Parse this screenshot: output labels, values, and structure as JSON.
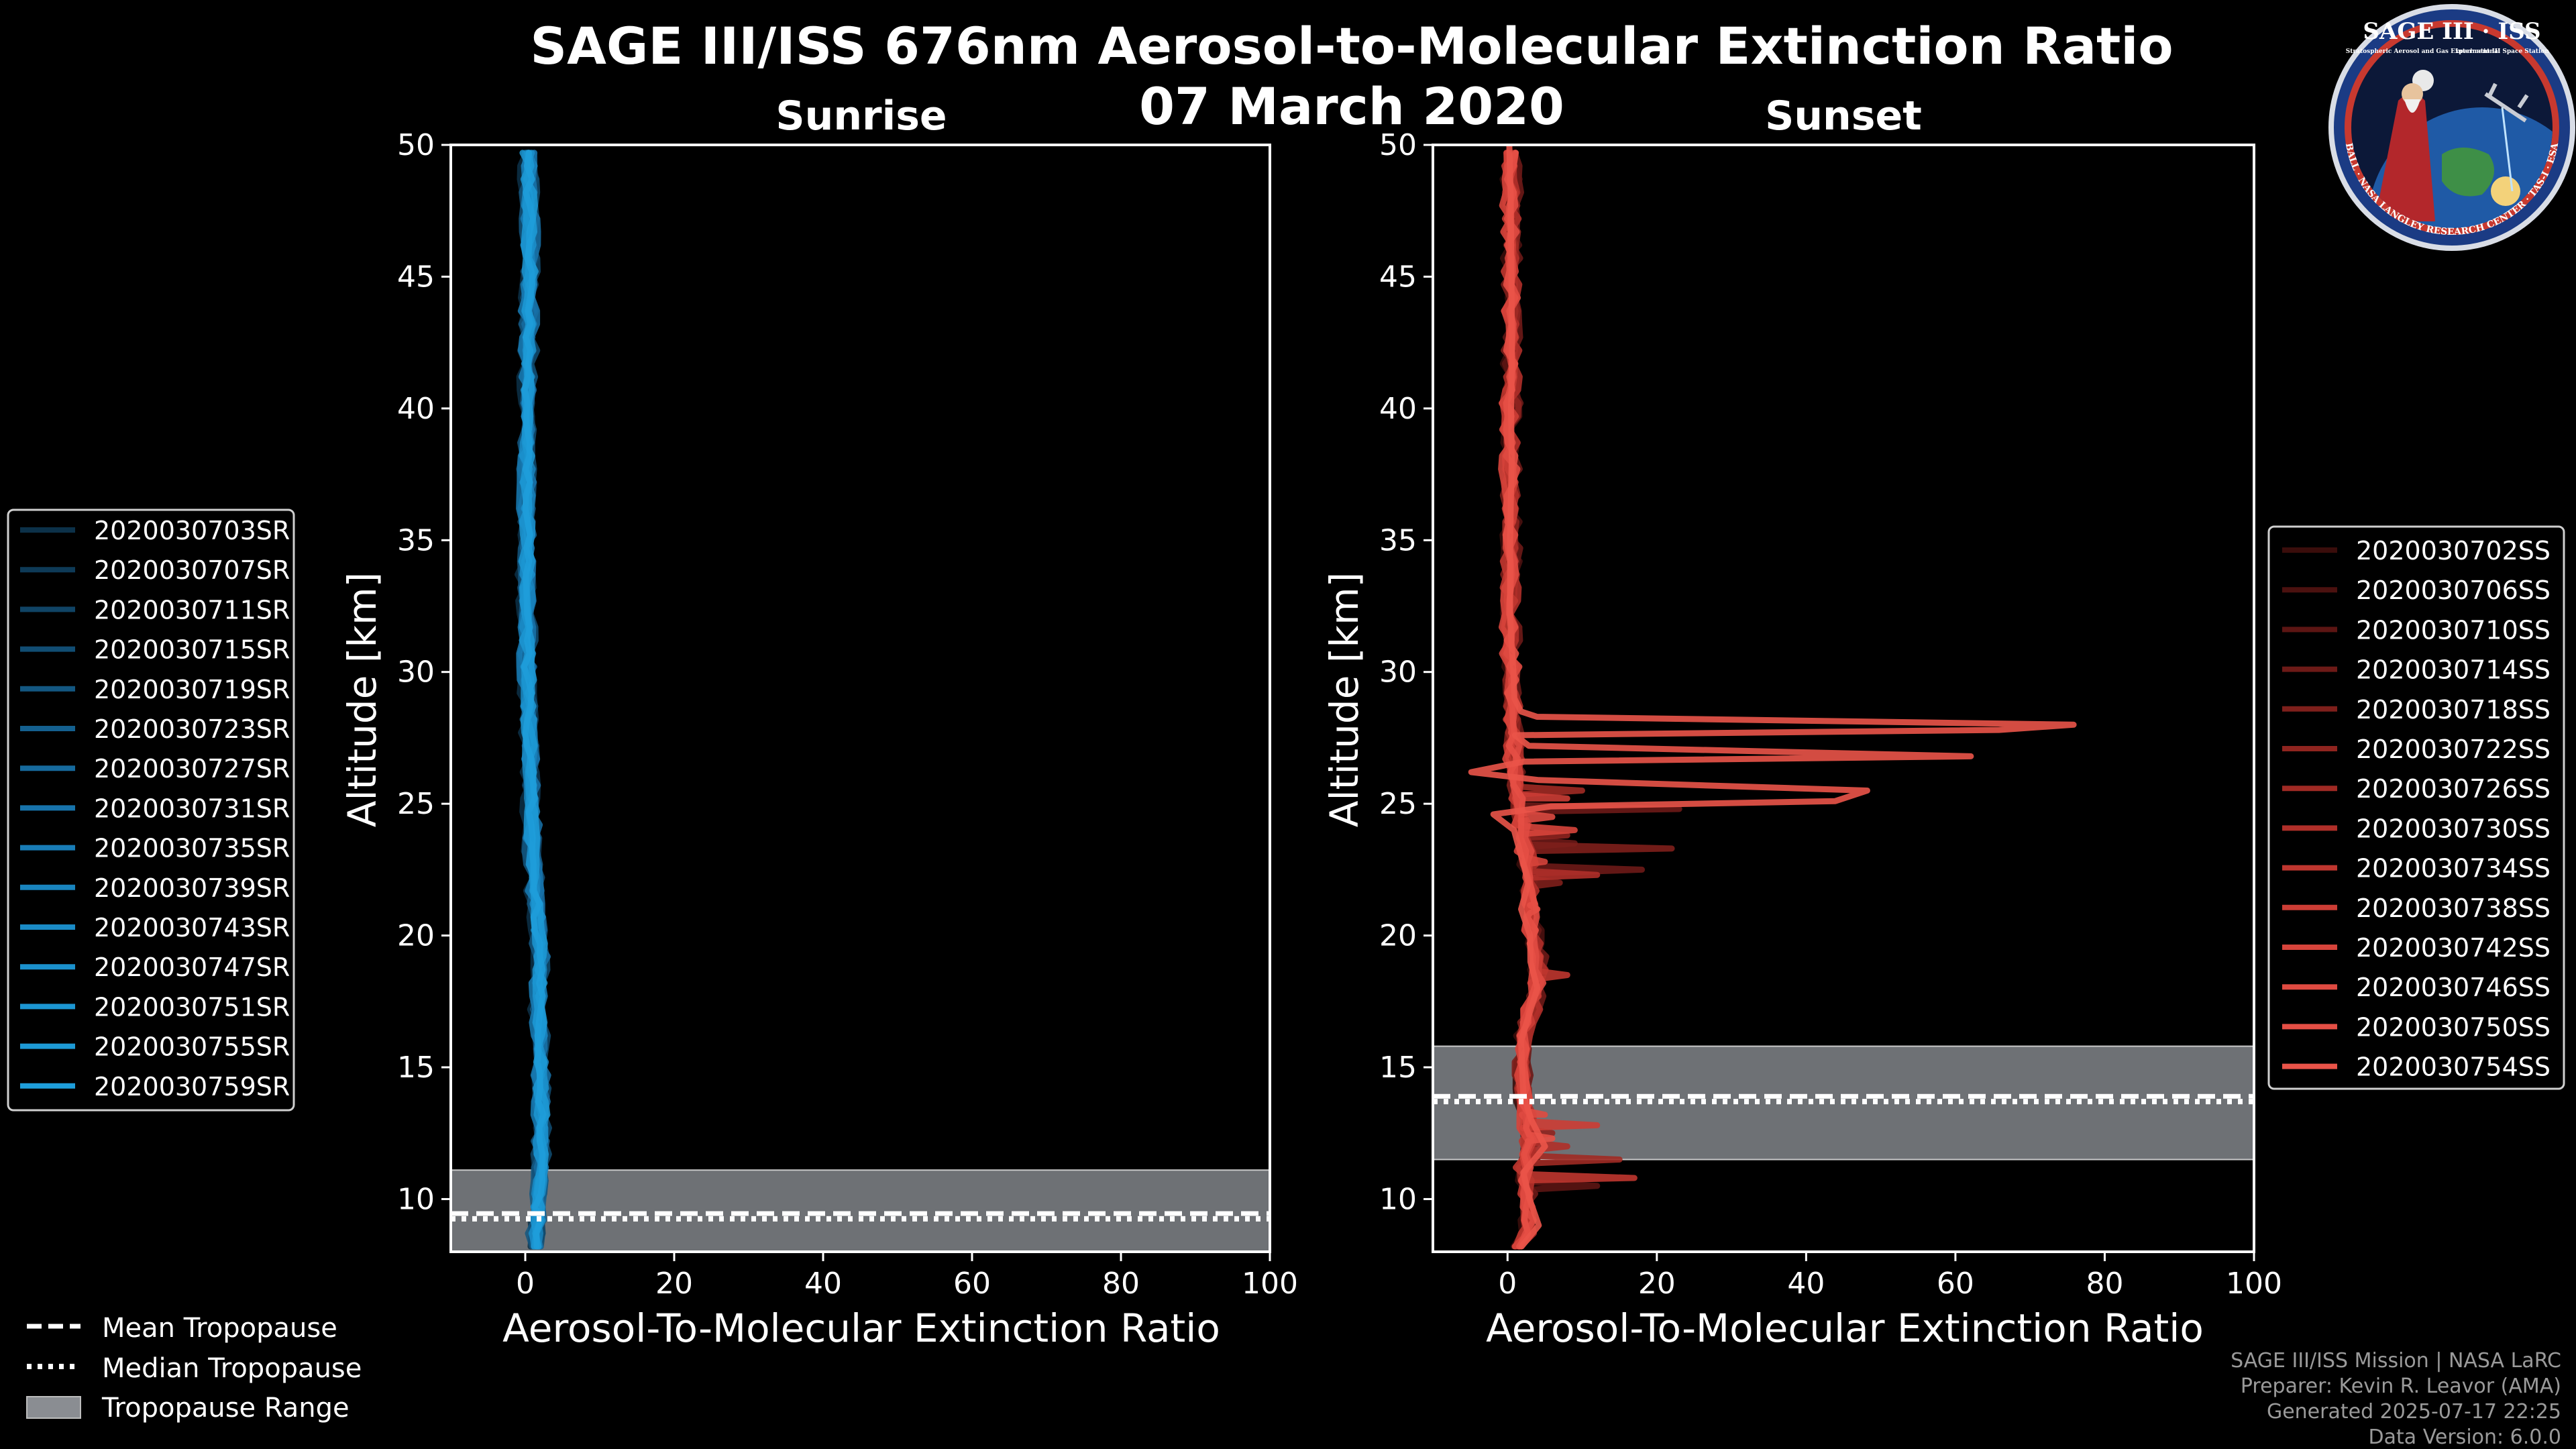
{
  "header": {
    "title": "SAGE III/ISS 676nm Aerosol-to-Molecular Extinction Ratio",
    "date": "07 March 2020"
  },
  "logo": {
    "label": "SAGE III · ISS",
    "ring_text": "BALL · NASA LANGLEY RESEARCH CENTER · TAS-I · ESA",
    "sub_text_left": "Stratospheric Aerosol and Gas Experiment III",
    "sub_text_right": "International Space Station"
  },
  "colors": {
    "background": "#000000",
    "sunrise": "#1e90d6",
    "sunset": "#e8534a",
    "tropopause_band": "#8a8d92",
    "axis": "#ffffff"
  },
  "shared_legend": {
    "items": [
      {
        "label": "Mean Tropopause",
        "style": "dashed"
      },
      {
        "label": "Median Tropopause",
        "style": "dotted"
      },
      {
        "label": "Tropopause Range",
        "style": "patch"
      }
    ]
  },
  "credits": {
    "line1": "SAGE III/ISS Mission | NASA LaRC",
    "line2": "Preparer: Kevin R. Leavor (AMA)",
    "line3": "Generated 2025-07-17 22:25",
    "line4": "Data Version: 6.0.0"
  },
  "chart_data": [
    {
      "type": "line",
      "id": "sunrise",
      "title": "Sunrise",
      "xlabel": "Aerosol-To-Molecular Extinction Ratio",
      "ylabel": "Altitude [km]",
      "xlim": [
        -10,
        100
      ],
      "ylim": [
        8,
        50
      ],
      "xticks": [
        0,
        20,
        40,
        60,
        80,
        100
      ],
      "yticks": [
        10,
        15,
        20,
        25,
        30,
        35,
        40,
        45,
        50
      ],
      "tropopause": {
        "min": 8.0,
        "max": 11.1,
        "mean": 9.45,
        "median": 9.25
      },
      "profile_nodes": [
        [
          8.2,
          1.2
        ],
        [
          9,
          1.5
        ],
        [
          10,
          1.8
        ],
        [
          11,
          2.0
        ],
        [
          12,
          2.1
        ],
        [
          13,
          2.2
        ],
        [
          14,
          2.2
        ],
        [
          15,
          2.0
        ],
        [
          16,
          1.9
        ],
        [
          17,
          1.8
        ],
        [
          18,
          1.9
        ],
        [
          19,
          2.0
        ],
        [
          20,
          1.8
        ],
        [
          21,
          1.5
        ],
        [
          22,
          1.2
        ],
        [
          23,
          1.0
        ],
        [
          24,
          0.9
        ],
        [
          25,
          0.8
        ],
        [
          26,
          0.7
        ],
        [
          27,
          0.6
        ],
        [
          28,
          0.5
        ],
        [
          30,
          0.3
        ],
        [
          32,
          0.2
        ],
        [
          34,
          0.2
        ],
        [
          36,
          0.2
        ],
        [
          38,
          0.2
        ],
        [
          40,
          0.3
        ],
        [
          42,
          0.4
        ],
        [
          44,
          0.5
        ],
        [
          46,
          0.6
        ],
        [
          48,
          0.5
        ],
        [
          50,
          0.4
        ]
      ],
      "legend": [
        "2020030703SR",
        "2020030707SR",
        "2020030711SR",
        "2020030715SR",
        "2020030719SR",
        "2020030723SR",
        "2020030727SR",
        "2020030731SR",
        "2020030735SR",
        "2020030739SR",
        "2020030743SR",
        "2020030747SR",
        "2020030751SR",
        "2020030755SR",
        "2020030759SR"
      ],
      "series": [
        {
          "name": "2020030703SR",
          "shift": -0.8,
          "jitter": 0.6,
          "color": "#0c3149"
        },
        {
          "name": "2020030707SR",
          "shift": 0.6,
          "jitter": 0.5,
          "color": "#0e3a57"
        },
        {
          "name": "2020030711SR",
          "shift": -0.3,
          "jitter": 0.7,
          "color": "#104465"
        },
        {
          "name": "2020030715SR",
          "shift": 0.9,
          "jitter": 0.5,
          "color": "#114d73"
        },
        {
          "name": "2020030719SR",
          "shift": -0.6,
          "jitter": 0.6,
          "color": "#135781"
        },
        {
          "name": "2020030723SR",
          "shift": 0.2,
          "jitter": 0.8,
          "color": "#14608f"
        },
        {
          "name": "2020030727SR",
          "shift": -0.1,
          "jitter": 0.5,
          "color": "#166a9d"
        },
        {
          "name": "2020030731SR",
          "shift": 0.7,
          "jitter": 0.6,
          "color": "#1773ab"
        },
        {
          "name": "2020030735SR",
          "shift": -0.5,
          "jitter": 0.7,
          "color": "#187cb6"
        },
        {
          "name": "2020030739SR",
          "shift": 0.4,
          "jitter": 0.5,
          "color": "#1984be"
        },
        {
          "name": "2020030743SR",
          "shift": -0.2,
          "jitter": 0.6,
          "color": "#1a8bc6"
        },
        {
          "name": "2020030747SR",
          "shift": 0.1,
          "jitter": 0.7,
          "color": "#1b91cd"
        },
        {
          "name": "2020030751SR",
          "shift": -0.4,
          "jitter": 0.5,
          "color": "#1c96d2"
        },
        {
          "name": "2020030755SR",
          "shift": 0.3,
          "jitter": 0.6,
          "color": "#1d9ad6"
        },
        {
          "name": "2020030759SR",
          "shift": 0.0,
          "jitter": 0.5,
          "color": "#1e9edb"
        }
      ]
    },
    {
      "type": "line",
      "id": "sunset",
      "title": "Sunset",
      "xlabel": "Aerosol-To-Molecular Extinction Ratio",
      "ylabel": "Altitude [km]",
      "xlim": [
        -10,
        100
      ],
      "ylim": [
        8,
        50
      ],
      "xticks": [
        0,
        20,
        40,
        60,
        80,
        100
      ],
      "yticks": [
        10,
        15,
        20,
        25,
        30,
        35,
        40,
        45,
        50
      ],
      "tropopause": {
        "min": 11.5,
        "max": 15.8,
        "mean": 13.9,
        "median": 13.7
      },
      "profile_nodes": [
        [
          8.2,
          2
        ],
        [
          9,
          3
        ],
        [
          10,
          2.5
        ],
        [
          11,
          2
        ],
        [
          12,
          3
        ],
        [
          13,
          2.5
        ],
        [
          14,
          2
        ],
        [
          15,
          2
        ],
        [
          16,
          2
        ],
        [
          17,
          3
        ],
        [
          18,
          4
        ],
        [
          19,
          4
        ],
        [
          20,
          3.5
        ],
        [
          21,
          3
        ],
        [
          22,
          3
        ],
        [
          23,
          2.5
        ],
        [
          24,
          2
        ],
        [
          25,
          1.5
        ],
        [
          26,
          1
        ],
        [
          27,
          0.8
        ],
        [
          28,
          0.6
        ],
        [
          29,
          0.5
        ],
        [
          30,
          0.5
        ],
        [
          32,
          0.4
        ],
        [
          35,
          0.4
        ],
        [
          38,
          0.4
        ],
        [
          40,
          0.4
        ],
        [
          42,
          0.5
        ],
        [
          45,
          0.5
        ],
        [
          48,
          0.5
        ],
        [
          50,
          0.4
        ]
      ],
      "legend": [
        "2020030702SS",
        "2020030706SS",
        "2020030710SS",
        "2020030714SS",
        "2020030718SS",
        "2020030722SS",
        "2020030726SS",
        "2020030730SS",
        "2020030734SS",
        "2020030738SS",
        "2020030742SS",
        "2020030746SS",
        "2020030750SS",
        "2020030754SS"
      ],
      "series": [
        {
          "name": "2020030702SS",
          "shift": -0.5,
          "jitter": 0.8,
          "color": "#3a0d0b"
        },
        {
          "name": "2020030706SS",
          "shift": 0.4,
          "jitter": 0.9,
          "color": "#4b110f"
        },
        {
          "name": "2020030710SS",
          "shift": -0.2,
          "jitter": 0.7,
          "color": "#5c1513",
          "spikes": [
            [
              10.5,
              12
            ],
            [
              11.5,
              4
            ]
          ]
        },
        {
          "name": "2020030714SS",
          "shift": 0.6,
          "jitter": 0.9,
          "color": "#6d1a17",
          "spikes": [
            [
              22.5,
              18
            ],
            [
              24.8,
              23
            ],
            [
              23.5,
              9
            ]
          ]
        },
        {
          "name": "2020030718SS",
          "shift": -0.4,
          "jitter": 0.8,
          "color": "#7e1f1b",
          "spikes": [
            [
              23.3,
              22
            ],
            [
              22.0,
              7
            ]
          ]
        },
        {
          "name": "2020030722SS",
          "shift": 0.2,
          "jitter": 0.9,
          "color": "#8f241f",
          "spikes": [
            [
              12.5,
              6
            ],
            [
              23.8,
              8
            ]
          ]
        },
        {
          "name": "2020030726SS",
          "shift": -0.1,
          "jitter": 0.7,
          "color": "#a02a24",
          "spikes": [
            [
              11.5,
              15
            ],
            [
              25.5,
              10
            ]
          ]
        },
        {
          "name": "2020030730SS",
          "shift": 0.5,
          "jitter": 0.8,
          "color": "#b02f29",
          "spikes": [
            [
              12.0,
              8
            ],
            [
              22.3,
              12
            ]
          ]
        },
        {
          "name": "2020030734SS",
          "shift": -0.3,
          "jitter": 0.9,
          "color": "#bf362f",
          "spikes": [
            [
              10.8,
              17
            ],
            [
              18.5,
              8
            ]
          ]
        },
        {
          "name": "2020030738SS",
          "shift": 0.1,
          "jitter": 0.7,
          "color": "#cc3d35",
          "spikes": [
            [
              12.8,
              12
            ],
            [
              25.2,
              8
            ]
          ]
        },
        {
          "name": "2020030742SS",
          "shift": -0.6,
          "jitter": 0.8,
          "color": "#d7443b",
          "spikes": [
            [
              24.0,
              9
            ],
            [
              22.8,
              5
            ]
          ]
        },
        {
          "name": "2020030746SS",
          "shift": 0.3,
          "jitter": 0.9,
          "color": "#df4a41",
          "spikes": [
            [
              13.2,
              5
            ],
            [
              24.5,
              6
            ]
          ]
        },
        {
          "name": "2020030750SS",
          "shift": 0.0,
          "jitter": 0.7,
          "color": "#e54f45",
          "spikes": [
            [
              12.3,
              6
            ],
            [
              21.0,
              4
            ]
          ]
        },
        {
          "name": "2020030754SS",
          "shift": 0.2,
          "jitter": 0.6,
          "color": "#ea5449",
          "override": [
            [
              8.2,
              2
            ],
            [
              9,
              4
            ],
            [
              10,
              3
            ],
            [
              11,
              2
            ],
            [
              12,
              5
            ],
            [
              13,
              3
            ],
            [
              14,
              2
            ],
            [
              16,
              2
            ],
            [
              17,
              3
            ],
            [
              18,
              4
            ],
            [
              19,
              3
            ],
            [
              20,
              3
            ],
            [
              21,
              2
            ],
            [
              22,
              3
            ],
            [
              23,
              2
            ],
            [
              24,
              1
            ],
            [
              24.6,
              -2
            ],
            [
              24.9,
              6
            ],
            [
              25.1,
              44
            ],
            [
              25.5,
              48
            ],
            [
              25.9,
              4
            ],
            [
              26.2,
              -5
            ],
            [
              26.6,
              2
            ],
            [
              26.8,
              62
            ],
            [
              27.2,
              3
            ],
            [
              27.6,
              1
            ],
            [
              27.8,
              66
            ],
            [
              28.0,
              76
            ],
            [
              28.3,
              4
            ],
            [
              28.5,
              2
            ],
            [
              29,
              1
            ],
            [
              30,
              0.6
            ],
            [
              32,
              0.5
            ],
            [
              35,
              0.5
            ],
            [
              38,
              0.5
            ],
            [
              40,
              0.5
            ],
            [
              42,
              0.5
            ],
            [
              45,
              0.6
            ],
            [
              48,
              0.5
            ],
            [
              50,
              0.4
            ]
          ]
        }
      ]
    }
  ]
}
